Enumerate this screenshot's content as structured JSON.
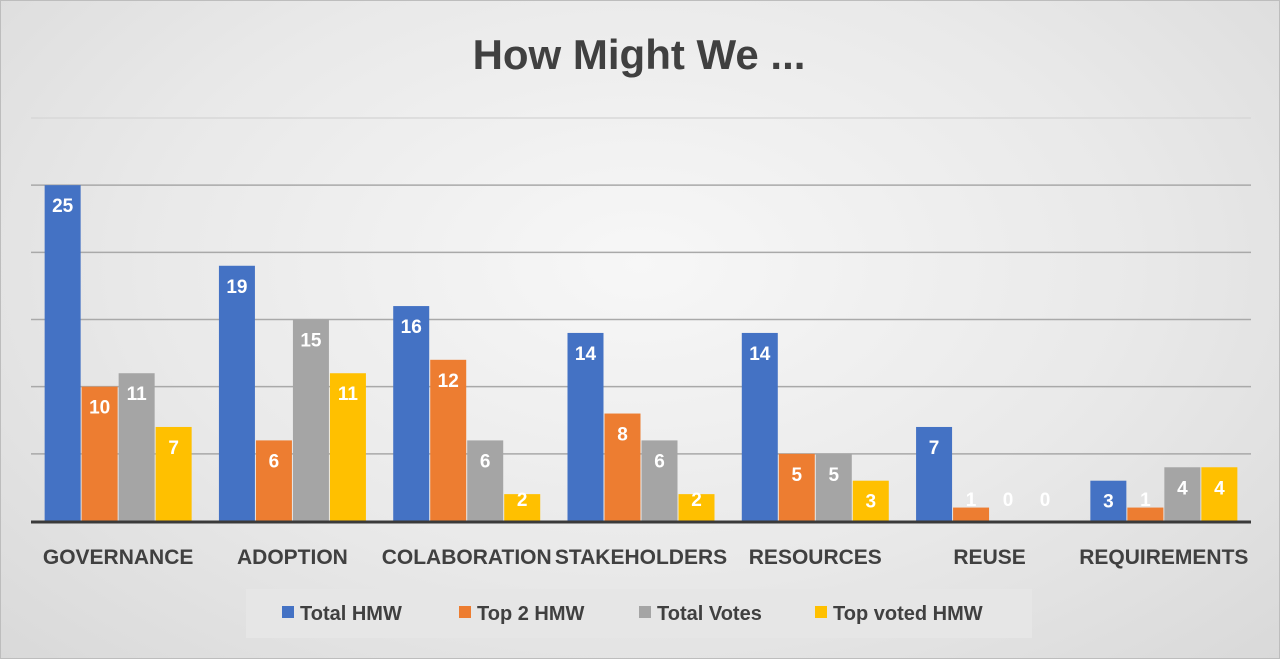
{
  "chart_data": {
    "type": "bar",
    "title": "How Might We ...",
    "categories": [
      "GOVERNANCE",
      "ADOPTION",
      "COLABORATION",
      "STAKEHOLDERS",
      "RESOURCES",
      "REUSE",
      "REQUIREMENTS"
    ],
    "series": [
      {
        "name": "Total HMW",
        "color": "#4472C4",
        "values": [
          25,
          19,
          16,
          14,
          14,
          7,
          3
        ]
      },
      {
        "name": "Top 2 HMW",
        "color": "#ED7D31",
        "values": [
          10,
          6,
          12,
          8,
          5,
          1,
          1
        ]
      },
      {
        "name": "Total Votes",
        "color": "#A5A5A5",
        "values": [
          11,
          15,
          6,
          6,
          5,
          0,
          4
        ]
      },
      {
        "name": "Top voted HMW",
        "color": "#FFC000",
        "values": [
          7,
          11,
          2,
          2,
          3,
          0,
          4
        ]
      }
    ],
    "ylim": [
      0,
      30
    ],
    "gridlines": true,
    "y_axis_labels_visible": false,
    "legend_position": "bottom",
    "xlabel": "",
    "ylabel": ""
  }
}
